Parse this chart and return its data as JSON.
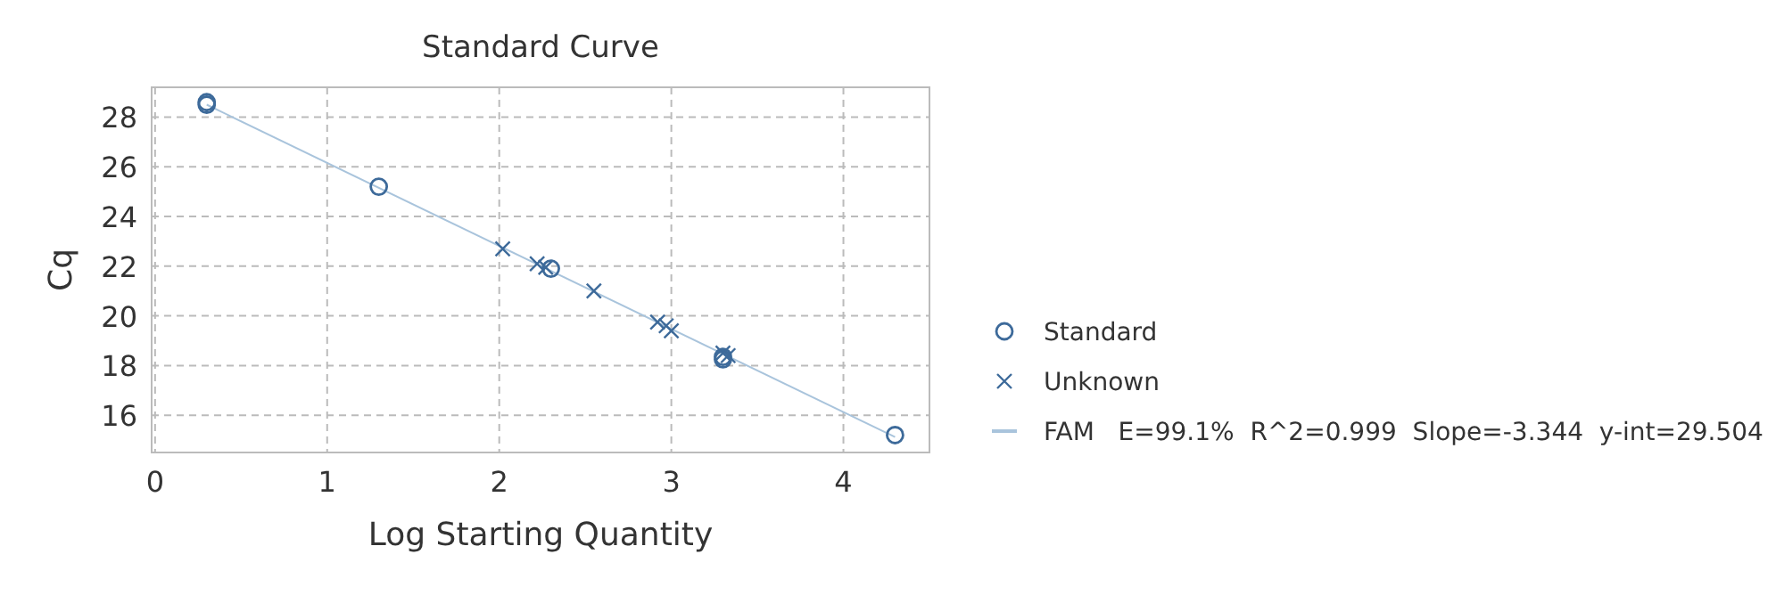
{
  "chart_data": {
    "type": "scatter",
    "title": "Standard Curve",
    "xlabel": "Log Starting Quantity",
    "ylabel": "Cq",
    "xlim": [
      -0.02,
      4.5
    ],
    "ylim": [
      14.5,
      29.2
    ],
    "xticks": [
      0,
      1,
      2,
      3,
      4
    ],
    "yticks": [
      16,
      18,
      20,
      22,
      24,
      26,
      28
    ],
    "grid": true,
    "legend": "right",
    "series": [
      {
        "name": "Standard",
        "marker": "circle",
        "color": "#3d6a9a",
        "x": [
          0.3,
          0.3,
          1.3,
          2.3,
          3.3,
          3.3,
          4.3
        ],
        "values": [
          28.6,
          28.5,
          25.2,
          21.9,
          18.35,
          18.25,
          15.2
        ]
      },
      {
        "name": "Unknown",
        "marker": "cross",
        "color": "#3d6a9a",
        "x": [
          2.02,
          2.22,
          2.27,
          2.55,
          2.92,
          2.97,
          3.0,
          3.3,
          3.33
        ],
        "values": [
          22.7,
          22.1,
          21.95,
          21.0,
          19.75,
          19.6,
          19.4,
          18.5,
          18.4
        ]
      },
      {
        "name": "FAM   E=99.1%  R^2=0.999  Slope=-3.344  y-int=29.504",
        "type": "line",
        "marker": "none",
        "color": "#a9c4dc",
        "x": [
          0.3,
          4.3
        ],
        "values": [
          28.5,
          15.12
        ]
      }
    ]
  }
}
